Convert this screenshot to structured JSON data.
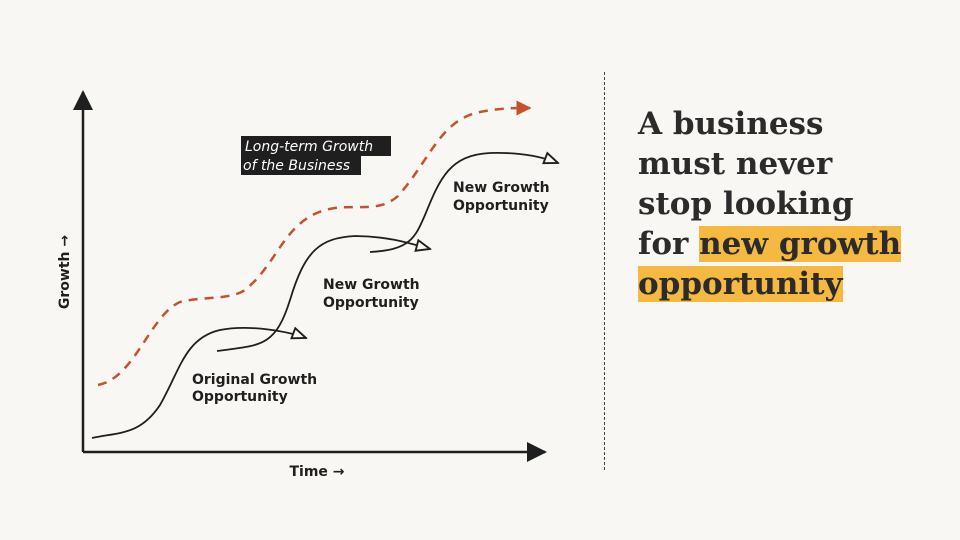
{
  "diagram": {
    "axes": {
      "x_label": "Time →",
      "y_label": "Growth →"
    },
    "long_term_tag": {
      "line1": "Long-term Growth",
      "line2": "of the Business"
    },
    "curves": [
      {
        "label_line1": "Original Growth",
        "label_line2": "Opportunity"
      },
      {
        "label_line1": "New Growth",
        "label_line2": "Opportunity"
      },
      {
        "label_line1": "New Growth",
        "label_line2": "Opportunity"
      }
    ],
    "colors": {
      "trend": "#c4522c",
      "ink": "#1f1f1f",
      "tag_bg": "#1f1f1f"
    }
  },
  "headline": {
    "line1": "A business",
    "line2": "must never",
    "line3": "stop looking",
    "line4_prefix": "for ",
    "line4_highlight": "new growth",
    "line5_highlight": "opportunity",
    "highlight_color": "#f5b840"
  }
}
